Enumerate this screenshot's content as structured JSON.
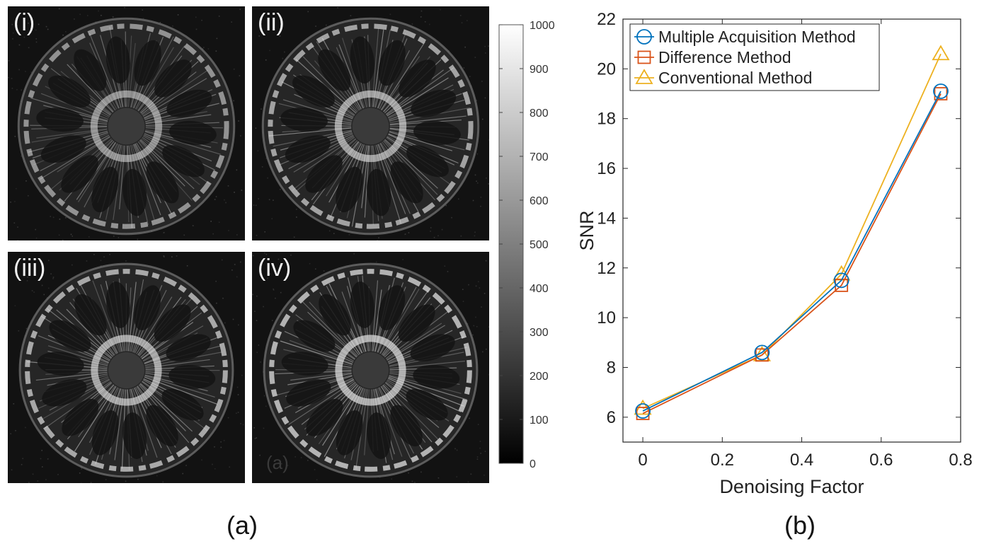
{
  "figure_a": {
    "panels": [
      {
        "label": "(i)"
      },
      {
        "label": "(ii)"
      },
      {
        "label": "(iii)"
      },
      {
        "label": "(iv)"
      }
    ],
    "inner_label": "(a)",
    "colorbar": {
      "ticks": [
        "1000",
        "900",
        "800",
        "700",
        "600",
        "500",
        "400",
        "300",
        "200",
        "100",
        "0"
      ],
      "range": [
        0,
        1000
      ]
    },
    "caption": "(a)"
  },
  "figure_b": {
    "caption": "(b)"
  },
  "chart_data": {
    "type": "line",
    "title": "",
    "xlabel": "Denoising Factor",
    "ylabel": "SNR",
    "xlim": [
      -0.05,
      0.8
    ],
    "ylim": [
      5,
      22
    ],
    "xticks": [
      "0",
      "0.2",
      "0.4",
      "0.6",
      "0.8"
    ],
    "yticks": [
      "6",
      "8",
      "10",
      "12",
      "14",
      "16",
      "18",
      "20",
      "22"
    ],
    "legend_position": "top-left",
    "x": [
      0,
      0.3,
      0.5,
      0.75
    ],
    "series": [
      {
        "name": "Multiple Acquisition Method",
        "marker": "circle",
        "color": "#0072BD",
        "values": [
          6.25,
          8.6,
          11.5,
          19.1
        ]
      },
      {
        "name": "Difference Method",
        "marker": "square",
        "color": "#D95319",
        "values": [
          6.15,
          8.5,
          11.3,
          19.0
        ]
      },
      {
        "name": "Conventional Method",
        "marker": "triangle",
        "color": "#EDB120",
        "values": [
          6.35,
          8.5,
          11.75,
          20.6
        ]
      }
    ]
  }
}
